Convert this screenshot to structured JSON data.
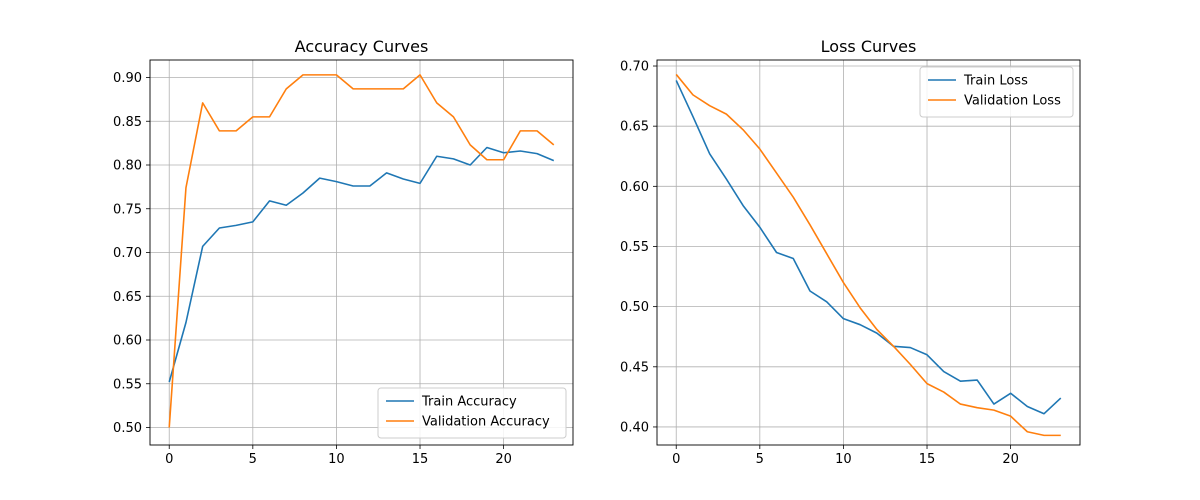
{
  "colors": {
    "series_train": "#1f77b4",
    "series_validation": "#ff7f0e",
    "grid": "#b0b0b0"
  },
  "chart_data": [
    {
      "type": "line",
      "title": "Accuracy Curves",
      "xlabel": "",
      "ylabel": "",
      "grid": true,
      "legend_position": "bottom-right",
      "xlim": [
        -1.15,
        24.15
      ],
      "ylim": [
        0.48,
        0.92
      ],
      "xticks": [
        0,
        5,
        10,
        15,
        20
      ],
      "yticks": [
        0.5,
        0.55,
        0.6,
        0.65,
        0.7,
        0.75,
        0.8,
        0.85,
        0.9
      ],
      "x": [
        0,
        1,
        2,
        3,
        4,
        5,
        6,
        7,
        8,
        9,
        10,
        11,
        12,
        13,
        14,
        15,
        16,
        17,
        18,
        19,
        20,
        21,
        22,
        23
      ],
      "series": [
        {
          "name": "Train Accuracy",
          "values": [
            0.552,
            0.62,
            0.707,
            0.728,
            0.731,
            0.735,
            0.759,
            0.754,
            0.768,
            0.785,
            0.781,
            0.776,
            0.776,
            0.791,
            0.784,
            0.779,
            0.81,
            0.807,
            0.8,
            0.82,
            0.814,
            0.816,
            0.813,
            0.805
          ]
        },
        {
          "name": "Validation Accuracy",
          "values": [
            0.5,
            0.774,
            0.871,
            0.839,
            0.839,
            0.855,
            0.855,
            0.887,
            0.903,
            0.903,
            0.903,
            0.887,
            0.887,
            0.887,
            0.887,
            0.903,
            0.871,
            0.855,
            0.823,
            0.806,
            0.806,
            0.839,
            0.839,
            0.823
          ]
        }
      ]
    },
    {
      "type": "line",
      "title": "Loss Curves",
      "xlabel": "",
      "ylabel": "",
      "grid": true,
      "legend_position": "top-right",
      "xlim": [
        -1.15,
        24.15
      ],
      "ylim": [
        0.385,
        0.705
      ],
      "xticks": [
        0,
        5,
        10,
        15,
        20
      ],
      "yticks": [
        0.4,
        0.45,
        0.5,
        0.55,
        0.6,
        0.65,
        0.7
      ],
      "x": [
        0,
        1,
        2,
        3,
        4,
        5,
        6,
        7,
        8,
        9,
        10,
        11,
        12,
        13,
        14,
        15,
        16,
        17,
        18,
        19,
        20,
        21,
        22,
        23
      ],
      "series": [
        {
          "name": "Train Loss",
          "values": [
            0.688,
            0.658,
            0.627,
            0.606,
            0.584,
            0.566,
            0.545,
            0.54,
            0.513,
            0.504,
            0.49,
            0.485,
            0.478,
            0.467,
            0.466,
            0.46,
            0.446,
            0.438,
            0.439,
            0.419,
            0.428,
            0.417,
            0.411,
            0.424
          ]
        },
        {
          "name": "Validation Loss",
          "values": [
            0.693,
            0.676,
            0.667,
            0.66,
            0.647,
            0.631,
            0.611,
            0.591,
            0.568,
            0.544,
            0.52,
            0.499,
            0.481,
            0.467,
            0.452,
            0.436,
            0.429,
            0.419,
            0.416,
            0.414,
            0.409,
            0.396,
            0.393,
            0.393
          ]
        }
      ]
    }
  ]
}
